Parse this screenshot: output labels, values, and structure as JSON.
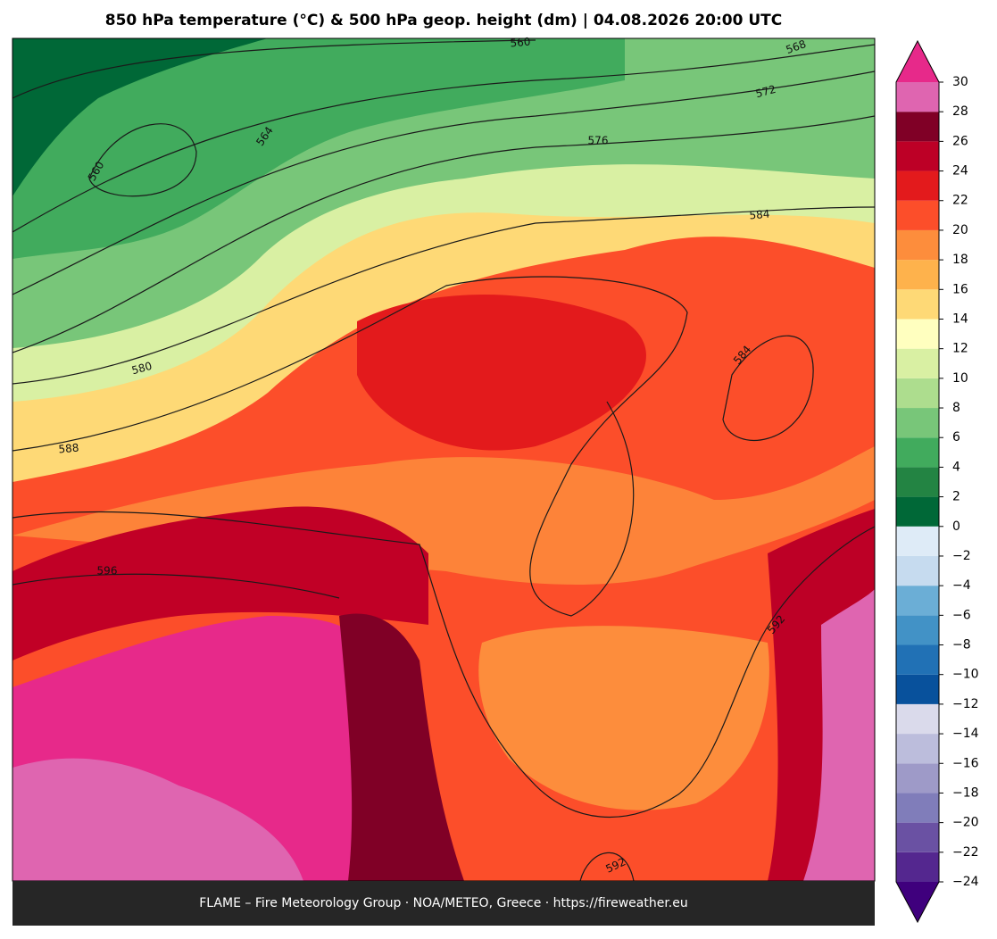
{
  "title": "850 hPa temperature (°C) & 500 hPa geop. height (dm)  |  04.08.2026 20:00 UTC",
  "footer": "FLAME – Fire Meteorology Group · NOA/METEO, Greece · https://fireweather.eu",
  "contour_labels": [
    "560",
    "568",
    "572",
    "576",
    "564",
    "560",
    "584",
    "580",
    "584",
    "588",
    "596",
    "592",
    "592"
  ],
  "colorbar": {
    "ticks": [
      {
        "value": -24,
        "label": "−24"
      },
      {
        "value": -22,
        "label": "−22"
      },
      {
        "value": -20,
        "label": "−20"
      },
      {
        "value": -18,
        "label": "−18"
      },
      {
        "value": -16,
        "label": "−16"
      },
      {
        "value": -14,
        "label": "−14"
      },
      {
        "value": -12,
        "label": "−12"
      },
      {
        "value": -10,
        "label": "−10"
      },
      {
        "value": -8,
        "label": "−8"
      },
      {
        "value": -6,
        "label": "−6"
      },
      {
        "value": -4,
        "label": "−4"
      },
      {
        "value": -2,
        "label": "−2"
      },
      0,
      2,
      4,
      6,
      8,
      10,
      12,
      14,
      16,
      18,
      20,
      22,
      24,
      26,
      28,
      30
    ],
    "colors": [
      "#54278f",
      "#6a51a3",
      "#807dba",
      "#9e9ac8",
      "#bcbddc",
      "#dadaeb",
      "#08519c",
      "#2171b5",
      "#4292c6",
      "#6baed6",
      "#c6dbef",
      "#deebf7",
      "#006837",
      "#238443",
      "#41ab5d",
      "#78c679",
      "#addd8e",
      "#d9f0a3",
      "#ffffbf",
      "#fed976",
      "#feb24c",
      "#fd8d3c",
      "#fc4e2a",
      "#e31a1c",
      "#bd0026",
      "#800026",
      "#df65b0"
    ],
    "under_color": "#3f007d",
    "over_color": "#e7298a"
  }
}
